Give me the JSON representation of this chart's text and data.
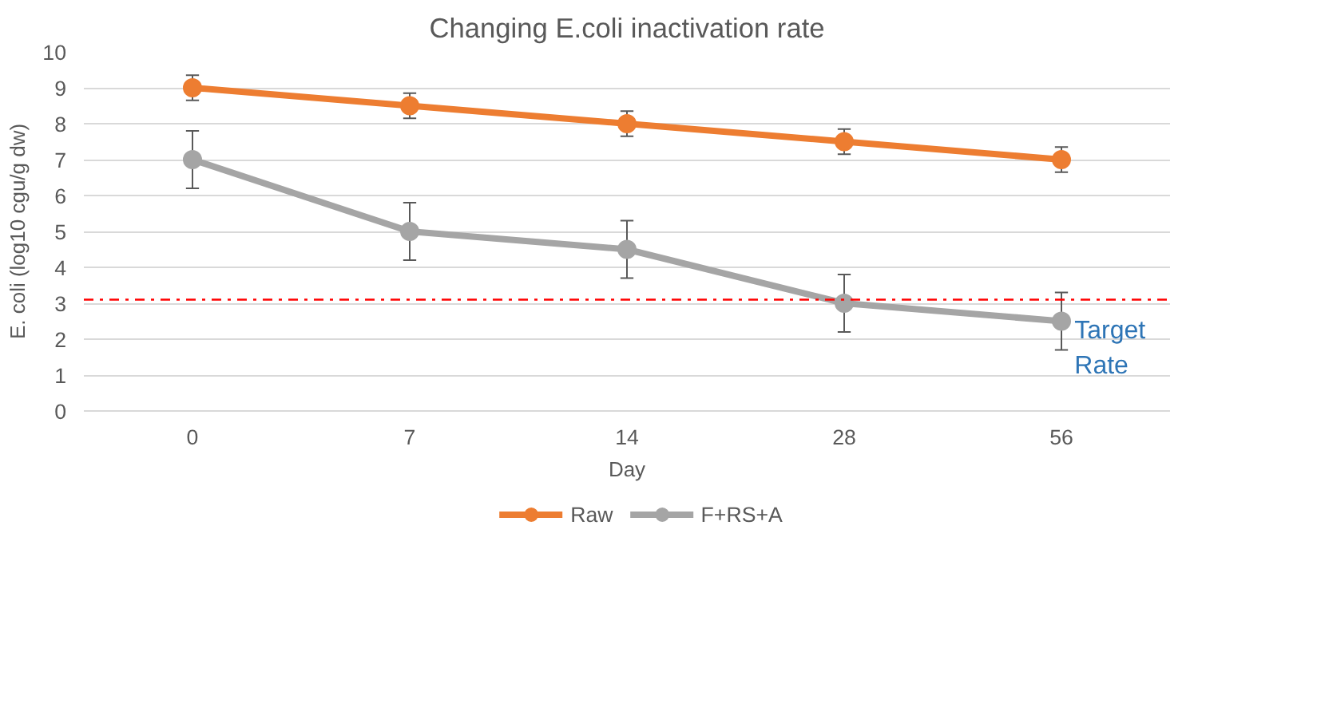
{
  "chart_data": {
    "type": "line",
    "title": "Changing E.coli inactivation rate",
    "xlabel": "Day",
    "ylabel": "E. coli (log10 cgu/g dw)",
    "categories": [
      "0",
      "7",
      "14",
      "28",
      "56"
    ],
    "series": [
      {
        "name": "Raw",
        "color": "#ed7d31",
        "values": [
          9,
          8.5,
          8,
          7.5,
          7
        ],
        "errors": [
          0.35,
          0.35,
          0.35,
          0.35,
          0.35
        ]
      },
      {
        "name": "F+RS+A",
        "color": "#a5a5a5",
        "values": [
          7,
          5,
          4.5,
          3,
          2.5
        ],
        "errors": [
          0.8,
          0.8,
          0.8,
          0.8,
          0.8
        ]
      }
    ],
    "ylim": [
      0,
      10
    ],
    "yticks": [
      0,
      1,
      2,
      3,
      4,
      5,
      6,
      7,
      8,
      9,
      10
    ],
    "ref_lines": [
      {
        "axis": "y",
        "value": 3.1,
        "label": "Target Rate",
        "color": "#ff0000",
        "line_style": "dashdot"
      }
    ],
    "grid": "y",
    "legend": "bottom",
    "marker": "circle",
    "line_style": "solid"
  }
}
